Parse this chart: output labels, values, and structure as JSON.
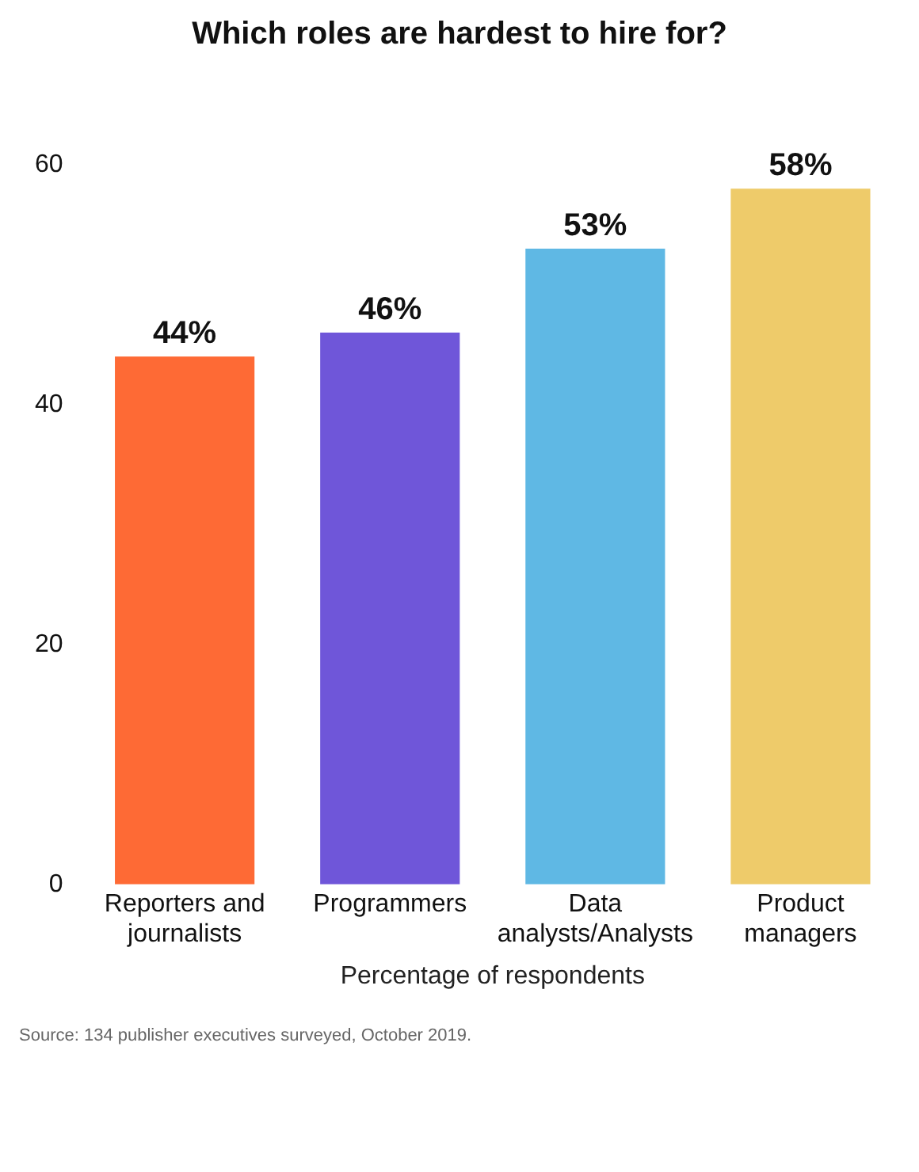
{
  "chart_data": {
    "type": "bar",
    "title": "Which roles are hardest to hire for?",
    "categories": [
      "Reporters and journalists",
      "Programmers",
      "Data analysts/Analysts",
      "Product managers"
    ],
    "values": [
      44,
      46,
      53,
      58
    ],
    "colors": [
      "#fe6a35",
      "#6f56d9",
      "#5fb8e4",
      "#eecb6a"
    ],
    "value_labels": [
      "44%",
      "46%",
      "53%",
      "58%"
    ],
    "xlabel": "Percentage of respondents",
    "ylim": [
      0,
      60
    ],
    "yticks": [
      0,
      20,
      40,
      60
    ],
    "grid": false,
    "legend": false,
    "annotations": [
      "Source: 134 publisher executives surveyed, October 2019."
    ]
  }
}
